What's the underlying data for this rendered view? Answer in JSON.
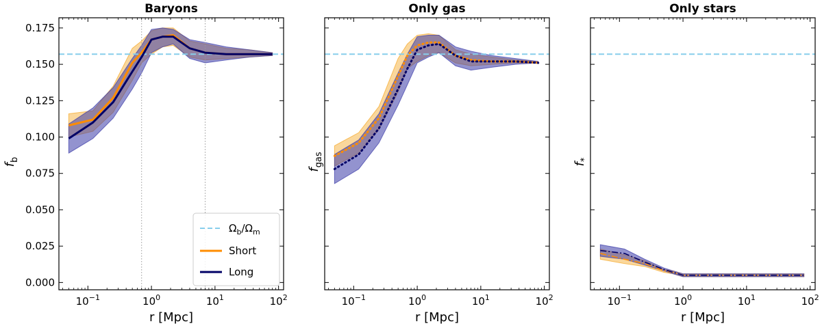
{
  "chart_data": {
    "type": "line",
    "xscale": "log",
    "xlim": [
      0.035,
      120
    ],
    "ylim": [
      -0.005,
      0.182
    ],
    "xticks": [
      {
        "value": 0.1,
        "base": "10",
        "exp": "−1"
      },
      {
        "value": 1,
        "base": "10",
        "exp": "0"
      },
      {
        "value": 10,
        "base": "10",
        "exp": "1"
      },
      {
        "value": 100,
        "base": "10",
        "exp": "2"
      }
    ],
    "yticks": [
      {
        "value": 0.0,
        "label": "0.000"
      },
      {
        "value": 0.025,
        "label": "0.025"
      },
      {
        "value": 0.05,
        "label": "0.050"
      },
      {
        "value": 0.075,
        "label": "0.075"
      },
      {
        "value": 0.1,
        "label": "0.100"
      },
      {
        "value": 0.125,
        "label": "0.125"
      },
      {
        "value": 0.15,
        "label": "0.150"
      },
      {
        "value": 0.175,
        "label": "0.175"
      }
    ],
    "xlabel": "r [Mpc]",
    "reference_line": {
      "value": 0.157,
      "label_main": "Ω",
      "label_sub1": "b",
      "label_slash": "/Ω",
      "label_sub2": "m",
      "color": "#87CEEB"
    },
    "vlines": [
      0.7,
      7.0
    ],
    "colors": {
      "short": "#FF8C00",
      "short_fill": "#F5A623",
      "long": "#000066",
      "long_fill": "#3B3BA8"
    },
    "legend": {
      "position": "lower-right",
      "short_label": "Short",
      "long_label": "Long"
    },
    "x": [
      0.05,
      0.12,
      0.25,
      0.5,
      0.7,
      1.0,
      1.5,
      2.2,
      4.0,
      7.0,
      15,
      35,
      80
    ],
    "panels": [
      {
        "title": "Baryons",
        "ylabel_main": "f",
        "ylabel_sub": "b",
        "show_yticklabels": true,
        "show_vlines": true,
        "show_legend": true,
        "line_style": "solid",
        "series": [
          {
            "name": "Short",
            "values": [
              0.108,
              0.112,
              0.127,
              0.151,
              0.158,
              0.167,
              0.169,
              0.17,
              0.161,
              0.158,
              0.157,
              0.157,
              0.157
            ],
            "lower": [
              0.1,
              0.104,
              0.117,
              0.139,
              0.151,
              0.157,
              0.162,
              0.163,
              0.155,
              0.153,
              0.154,
              0.155,
              0.156
            ],
            "upper": [
              0.116,
              0.118,
              0.135,
              0.161,
              0.166,
              0.173,
              0.175,
              0.175,
              0.166,
              0.164,
              0.161,
              0.16,
              0.158
            ]
          },
          {
            "name": "Long",
            "values": [
              0.099,
              0.11,
              0.124,
              0.145,
              0.155,
              0.167,
              0.169,
              0.169,
              0.161,
              0.158,
              0.157,
              0.157,
              0.157
            ],
            "lower": [
              0.089,
              0.099,
              0.113,
              0.133,
              0.144,
              0.158,
              0.162,
              0.164,
              0.154,
              0.151,
              0.153,
              0.155,
              0.156
            ],
            "upper": [
              0.109,
              0.12,
              0.134,
              0.154,
              0.163,
              0.174,
              0.175,
              0.174,
              0.167,
              0.165,
              0.162,
              0.16,
              0.158
            ]
          }
        ]
      },
      {
        "title": "Only gas",
        "ylabel_main": "f",
        "ylabel_sub": "gas",
        "show_yticklabels": false,
        "show_vlines": false,
        "show_legend": false,
        "line_style": "dotted",
        "series": [
          {
            "name": "Short",
            "values": [
              0.087,
              0.096,
              0.113,
              0.142,
              0.156,
              0.163,
              0.165,
              0.165,
              0.156,
              0.153,
              0.152,
              0.152,
              0.151
            ],
            "lower": [
              0.08,
              0.089,
              0.105,
              0.131,
              0.147,
              0.152,
              0.156,
              0.158,
              0.151,
              0.149,
              0.15,
              0.151,
              0.151
            ],
            "upper": [
              0.094,
              0.103,
              0.121,
              0.154,
              0.164,
              0.17,
              0.171,
              0.17,
              0.16,
              0.157,
              0.155,
              0.153,
              0.152
            ]
          },
          {
            "name": "Long",
            "values": [
              0.078,
              0.088,
              0.106,
              0.133,
              0.147,
              0.16,
              0.163,
              0.164,
              0.156,
              0.152,
              0.152,
              0.152,
              0.151
            ],
            "lower": [
              0.068,
              0.078,
              0.096,
              0.122,
              0.136,
              0.151,
              0.155,
              0.158,
              0.149,
              0.146,
              0.148,
              0.15,
              0.151
            ],
            "upper": [
              0.088,
              0.098,
              0.116,
              0.144,
              0.157,
              0.169,
              0.17,
              0.17,
              0.162,
              0.159,
              0.156,
              0.154,
              0.152
            ]
          }
        ]
      },
      {
        "title": "Only stars",
        "ylabel_main": "f",
        "ylabel_sub": "*",
        "show_yticklabels": false,
        "show_vlines": false,
        "show_legend": false,
        "line_style": "dashdot",
        "series": [
          {
            "name": "Short",
            "values": [
              0.02,
              0.016,
              0.013,
              0.008,
              0.007,
              0.005,
              0.005,
              0.005,
              0.005,
              0.005,
              0.005,
              0.005,
              0.005
            ],
            "lower": [
              0.016,
              0.013,
              0.011,
              0.007,
              0.006,
              0.004,
              0.004,
              0.004,
              0.004,
              0.004,
              0.004,
              0.004,
              0.004
            ],
            "upper": [
              0.023,
              0.019,
              0.015,
              0.009,
              0.008,
              0.006,
              0.006,
              0.006,
              0.006,
              0.006,
              0.006,
              0.006,
              0.006
            ]
          },
          {
            "name": "Long",
            "values": [
              0.022,
              0.02,
              0.014,
              0.009,
              0.007,
              0.005,
              0.005,
              0.005,
              0.005,
              0.005,
              0.005,
              0.005,
              0.005
            ],
            "lower": [
              0.018,
              0.016,
              0.012,
              0.008,
              0.006,
              0.004,
              0.004,
              0.004,
              0.004,
              0.004,
              0.004,
              0.004,
              0.004
            ],
            "upper": [
              0.026,
              0.023,
              0.016,
              0.01,
              0.008,
              0.006,
              0.006,
              0.006,
              0.006,
              0.006,
              0.006,
              0.006,
              0.006
            ]
          }
        ]
      }
    ]
  }
}
